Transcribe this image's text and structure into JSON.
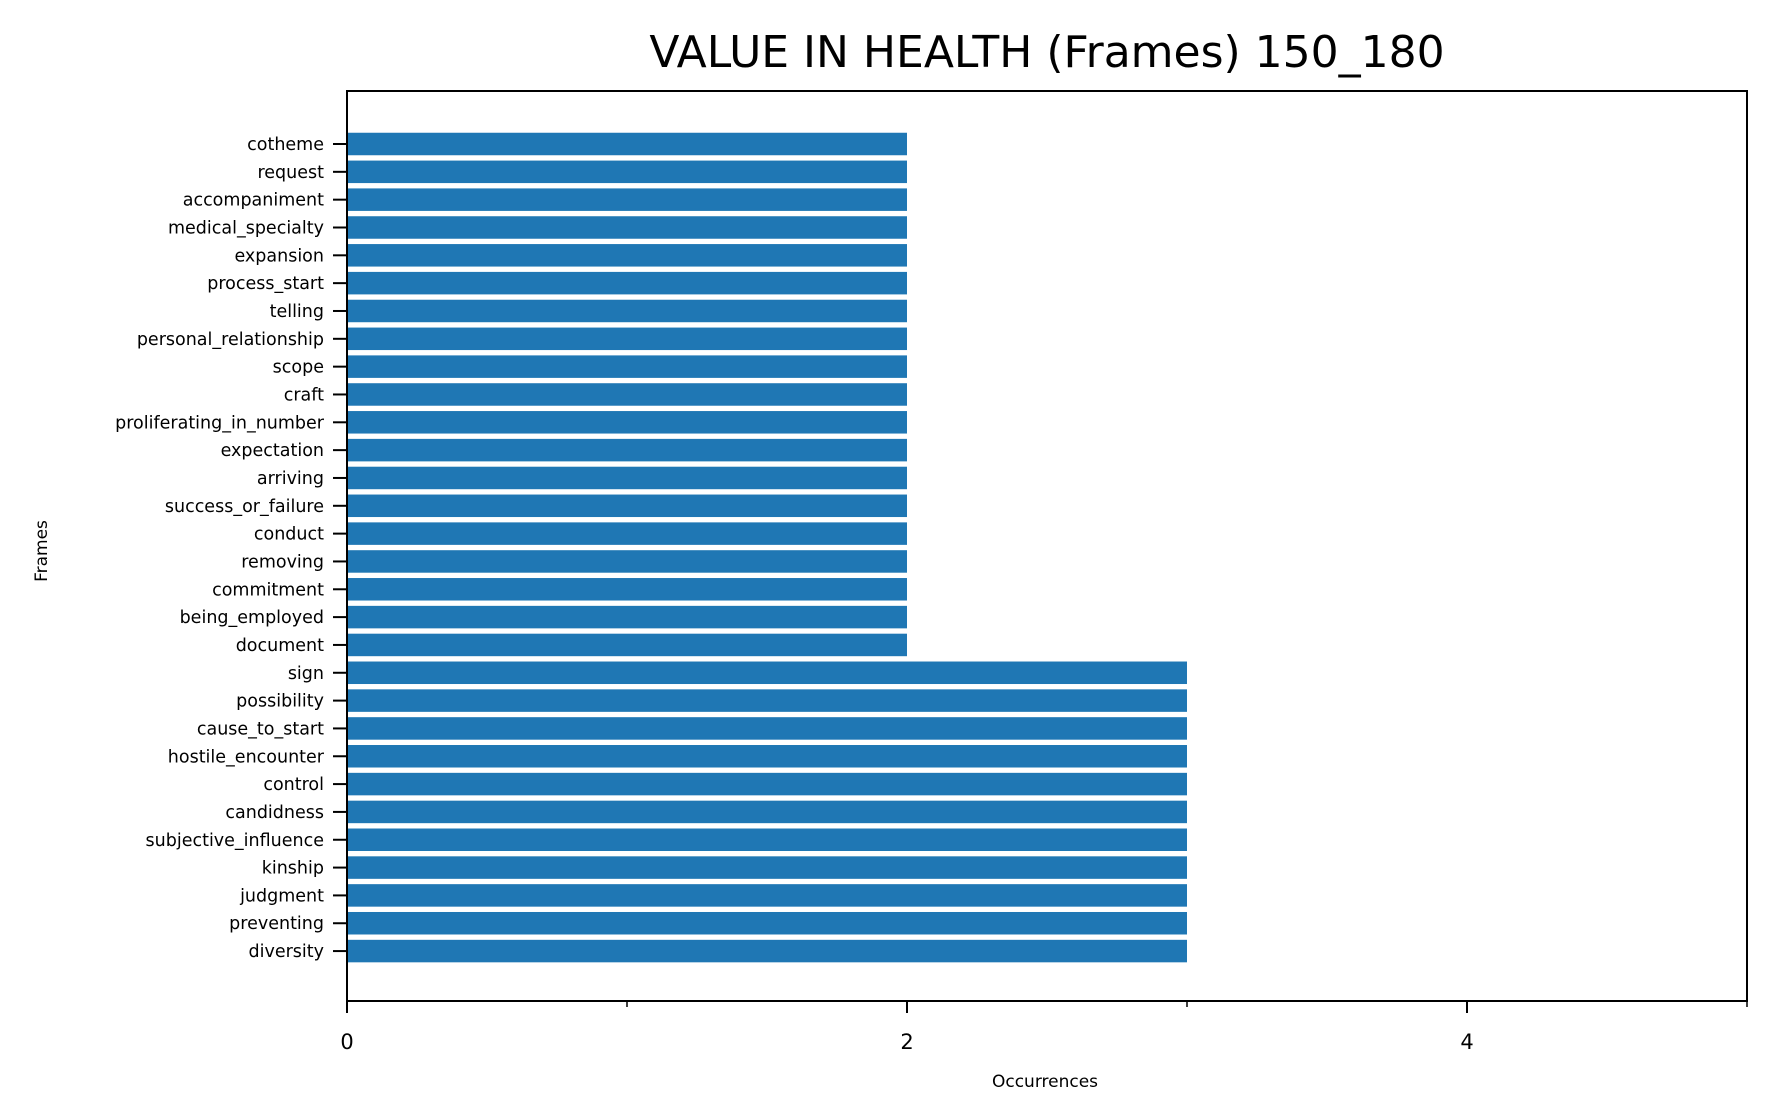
{
  "chart_data": {
    "type": "bar",
    "orientation": "horizontal",
    "title": "VALUE IN HEALTH (Frames) 150_180",
    "xlabel": "Occurrences",
    "ylabel": "Frames",
    "xlim": [
      0,
      5
    ],
    "xticks": [
      0,
      2,
      4
    ],
    "minor_xticks": [
      1,
      3,
      5
    ],
    "grid": false,
    "bar_color": "#1f77b4",
    "categories": [
      "cotheme",
      "request",
      "accompaniment",
      "medical_specialty",
      "expansion",
      "process_start",
      "telling",
      "personal_relationship",
      "scope",
      "craft",
      "proliferating_in_number",
      "expectation",
      "arriving",
      "success_or_failure",
      "conduct",
      "removing",
      "commitment",
      "being_employed",
      "document",
      "sign",
      "possibility",
      "cause_to_start",
      "hostile_encounter",
      "control",
      "candidness",
      "subjective_influence",
      "kinship",
      "judgment",
      "preventing",
      "diversity"
    ],
    "values": [
      2,
      2,
      2,
      2,
      2,
      2,
      2,
      2,
      2,
      2,
      2,
      2,
      2,
      2,
      2,
      2,
      2,
      2,
      2,
      3,
      3,
      3,
      3,
      3,
      3,
      3,
      3,
      3,
      3,
      3
    ]
  }
}
